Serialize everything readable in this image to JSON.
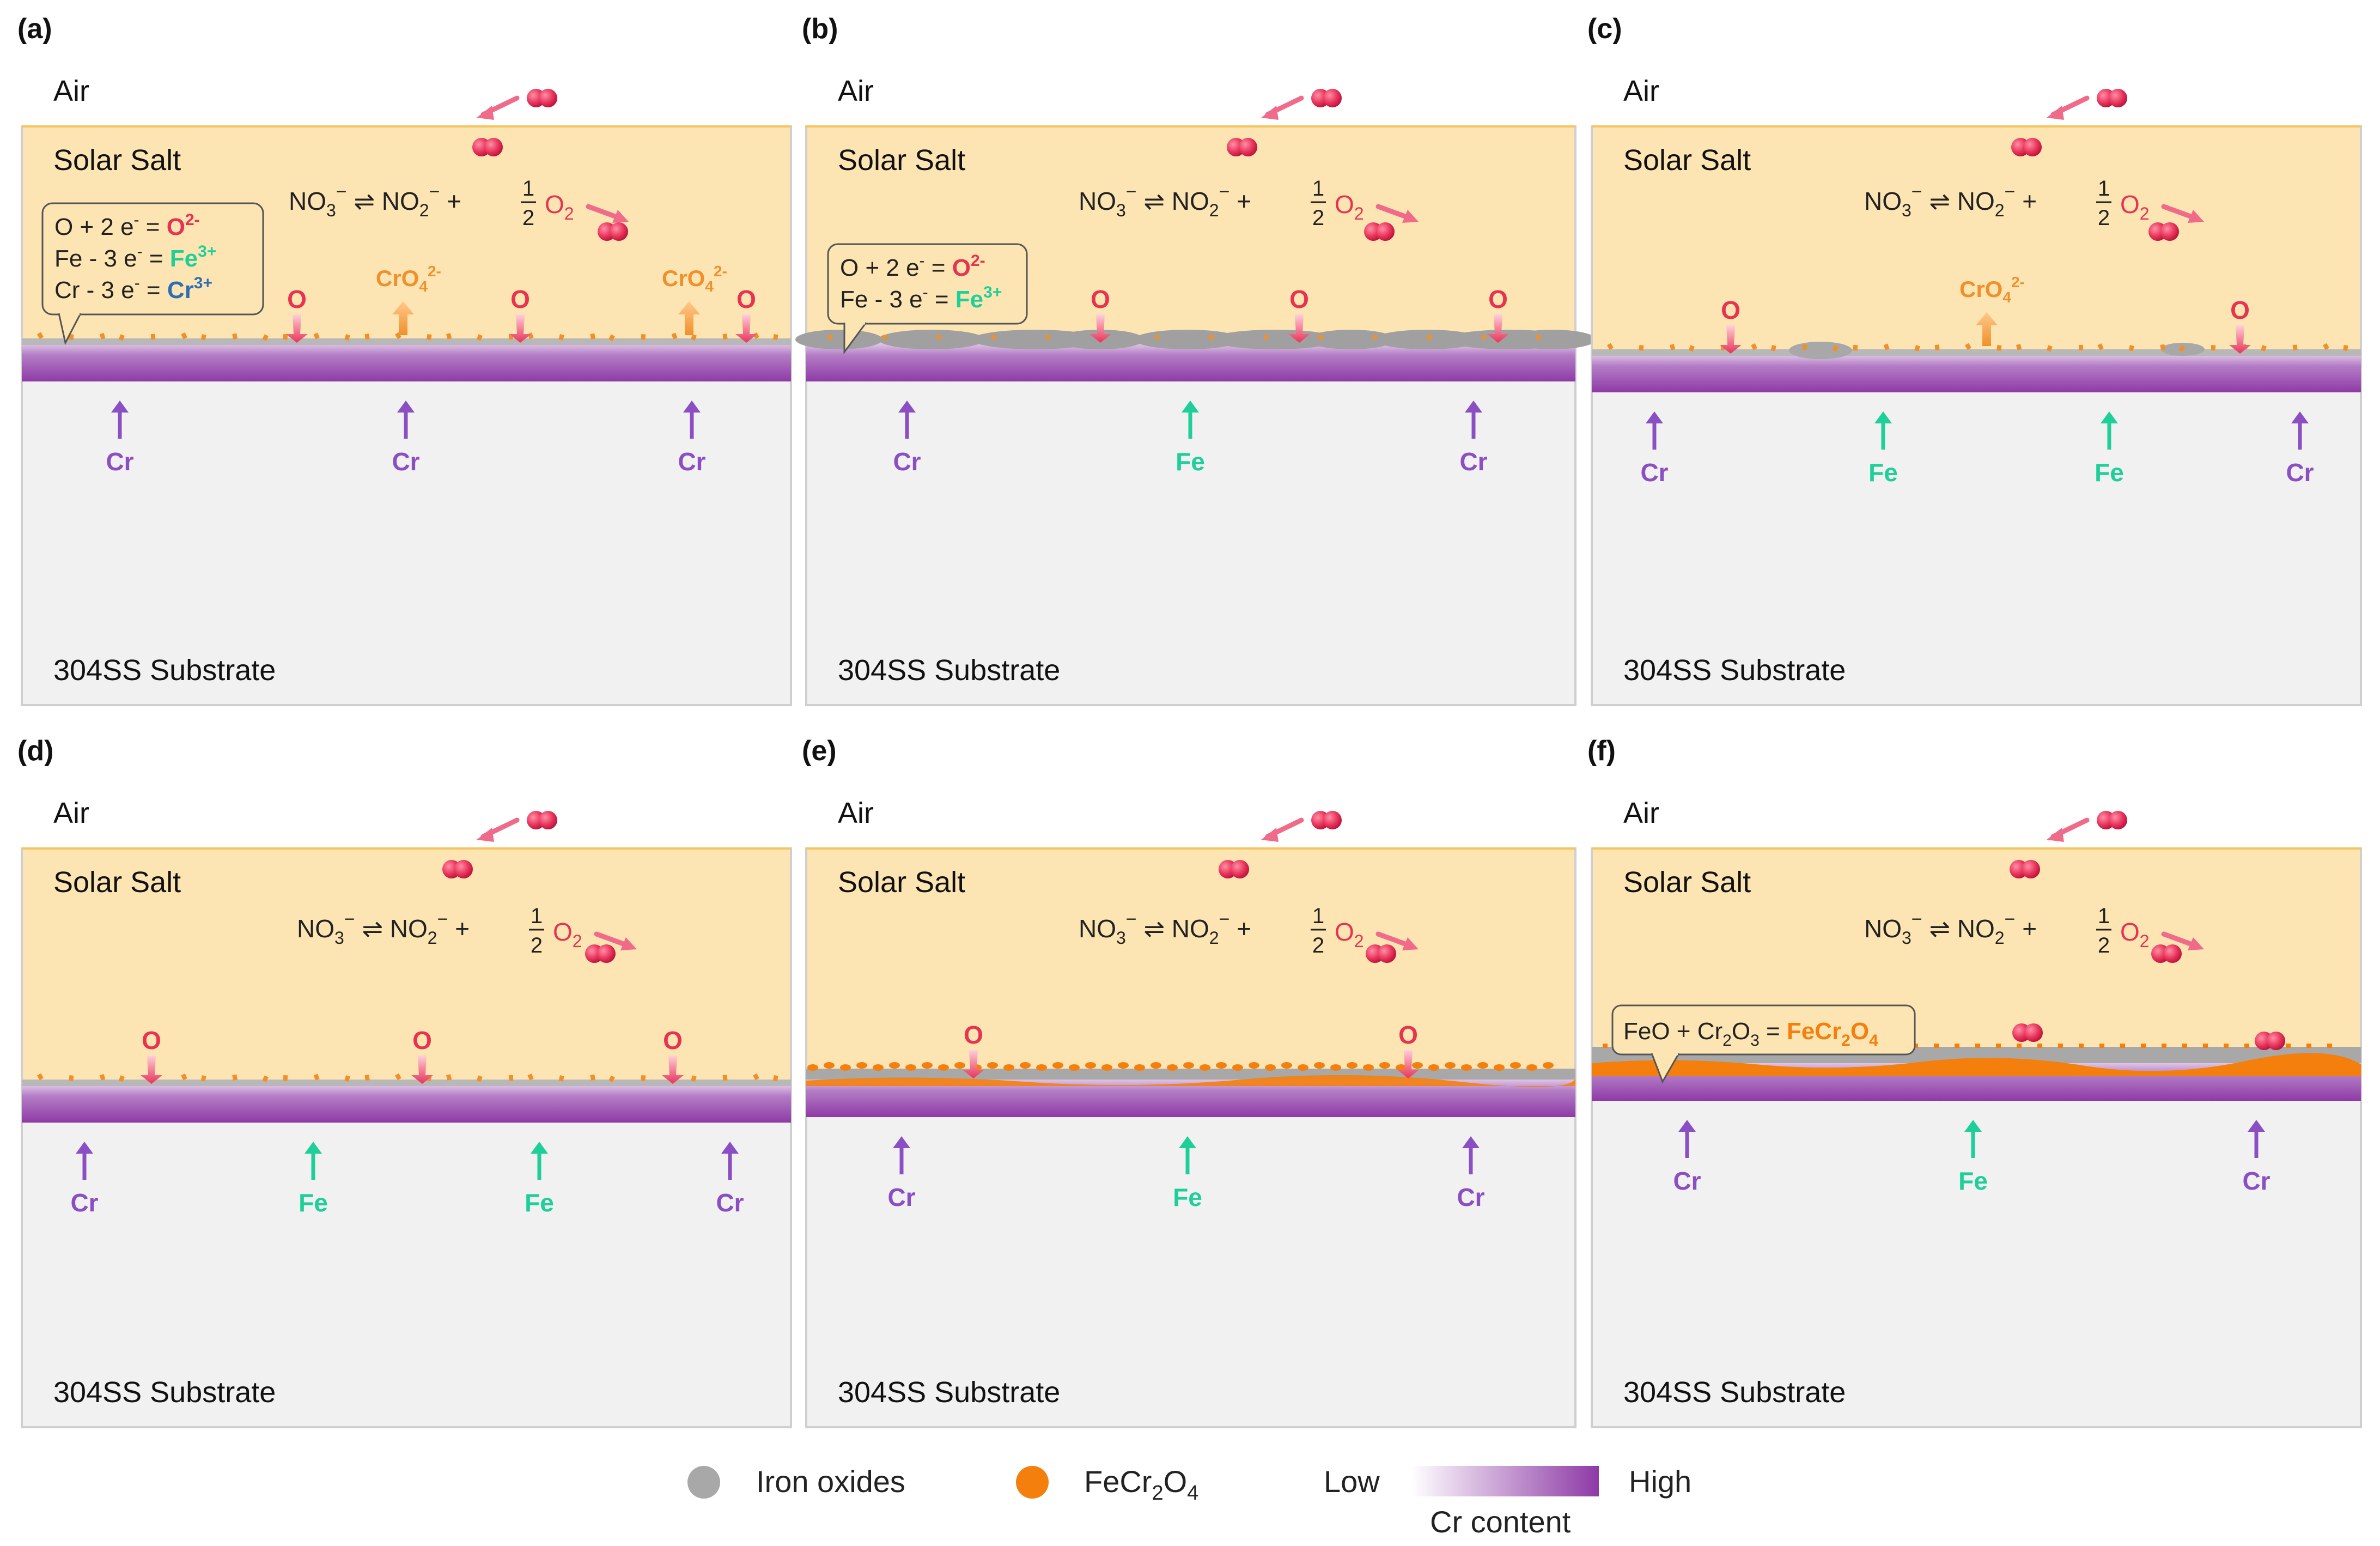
{
  "labels": {
    "air": "Air",
    "salt": "Solar Salt",
    "substrate": "304SS Substrate",
    "o_atom": "O"
  },
  "reaction": {
    "no3": "NO",
    "sub3": "3",
    "eq": "⇌",
    "no2": "NO",
    "sub2": "2",
    "minus": "−",
    "plus": "+",
    "half_num": "1",
    "half_den": "2",
    "o2": "O",
    "o2sub": "2"
  },
  "callouts": {
    "a": [
      {
        "lhs": "O + 2 e",
        "sup": "-",
        "eq": " = ",
        "rhs": "O",
        "rsup": "2-",
        "color": "#e8334f"
      },
      {
        "lhs": "Fe - 3 e",
        "sup": "-",
        "eq": " = ",
        "rhs": "Fe",
        "rsup": "3+",
        "color": "#1fcf9a"
      },
      {
        "lhs": "Cr - 3 e",
        "sup": "-",
        "eq": " = ",
        "rhs": "Cr",
        "rsup": "3+",
        "color": "#2d6db5"
      }
    ],
    "b": [
      {
        "lhs": "O + 2 e",
        "sup": "-",
        "eq": " = ",
        "rhs": "O",
        "rsup": "2-",
        "color": "#e8334f"
      },
      {
        "lhs": "Fe - 3 e",
        "sup": "-",
        "eq": " = ",
        "rhs": "Fe",
        "rsup": "3+",
        "color": "#1fcf9a"
      }
    ],
    "f": {
      "a": "FeO + Cr",
      "a_sub": "2",
      "b": "O",
      "b_sub": "3",
      "eq": " = ",
      "c": "FeCr",
      "c_sub1": "2",
      "d": "O",
      "c_sub2": "4"
    }
  },
  "chromate": {
    "base": "CrO",
    "sub": "4",
    "sup": "2-"
  },
  "panels": [
    {
      "id": "a",
      "tag": "(a)",
      "elements": [
        "Cr",
        "Cr",
        "Cr"
      ]
    },
    {
      "id": "b",
      "tag": "(b)",
      "elements": [
        "Cr",
        "Fe",
        "Cr"
      ]
    },
    {
      "id": "c",
      "tag": "(c)",
      "elements": [
        "Cr",
        "Fe",
        "Fe",
        "Cr"
      ]
    },
    {
      "id": "d",
      "tag": "(d)",
      "elements": [
        "Cr",
        "Fe",
        "Fe",
        "Cr"
      ]
    },
    {
      "id": "e",
      "tag": "(e)",
      "elements": [
        "Cr",
        "Fe",
        "Cr"
      ]
    },
    {
      "id": "f",
      "tag": "(f)",
      "elements": [
        "Cr",
        "Fe",
        "Cr"
      ]
    }
  ],
  "legend": {
    "iron_oxides": "Iron oxides",
    "fecr_base": "FeCr",
    "fecr_sub1": "2",
    "fecr_o": "O",
    "fecr_sub2": "4",
    "low": "Low",
    "high": "High",
    "cr_content": "Cr content"
  },
  "colors": {
    "salt": "#fde5b3",
    "salt_border": "#f5c45e",
    "substrate": "#f1f1f1",
    "cr_high": "#8e3aa6",
    "fe": "#1fcf9a",
    "cr": "#8a4fc2",
    "oxygen": "#e8334f",
    "chromate": "#f0902a",
    "iron_oxide": "#a8a8a8",
    "fecr2o4": "#f57f0c"
  }
}
